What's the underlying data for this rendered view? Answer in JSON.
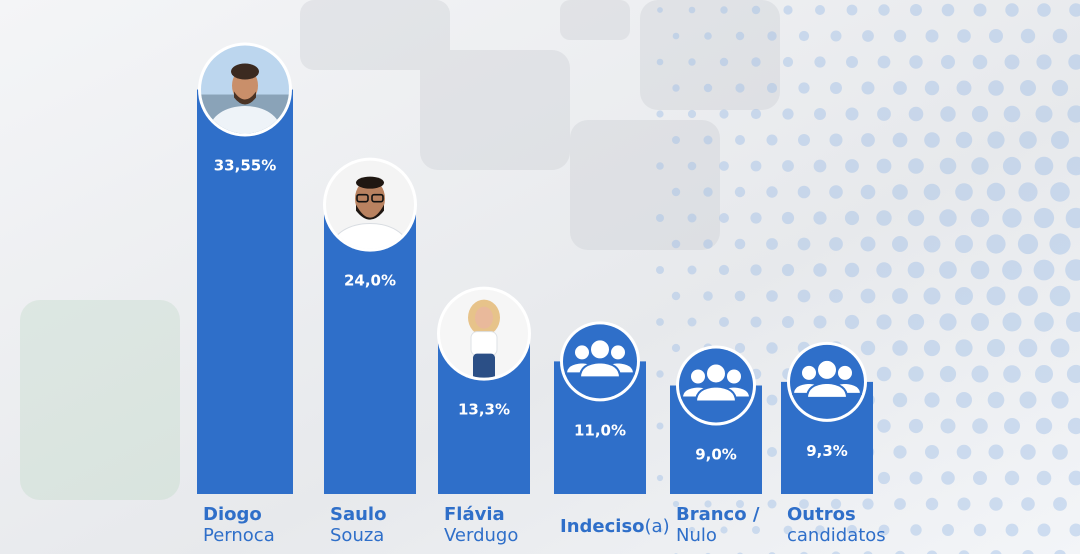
{
  "chart_data": {
    "type": "bar",
    "categories": [
      "Diogo Pernoca",
      "Saulo Souza",
      "Flávia Verdugo",
      "Indeciso(a)",
      "Branco / Nulo",
      "Outros candidatos"
    ],
    "values": [
      33.55,
      24.0,
      13.3,
      11.0,
      9.0,
      9.3
    ],
    "value_labels": [
      "33,55%",
      "24,0%",
      "13,3%",
      "11,0%",
      "9,0%",
      "9,3%"
    ],
    "label_lines": [
      [
        "Diogo",
        "Pernoca"
      ],
      [
        "Saulo",
        "Souza"
      ],
      [
        "Flávia",
        "Verdugo"
      ],
      [
        "Indeciso",
        "(a)"
      ],
      [
        "Branco /",
        "Nulo"
      ],
      [
        "Outros",
        "candidatos"
      ]
    ],
    "badges": [
      "photo-man-beard",
      "photo-man-glasses",
      "photo-woman-blonde",
      "group-icon",
      "group-icon",
      "group-icon"
    ],
    "title": "",
    "xlabel": "",
    "ylabel": "",
    "ylim": [
      0,
      36
    ],
    "grid": false,
    "legend": "none",
    "bar_color": "#2f6fc9",
    "label_color": "#2f6fc9"
  }
}
